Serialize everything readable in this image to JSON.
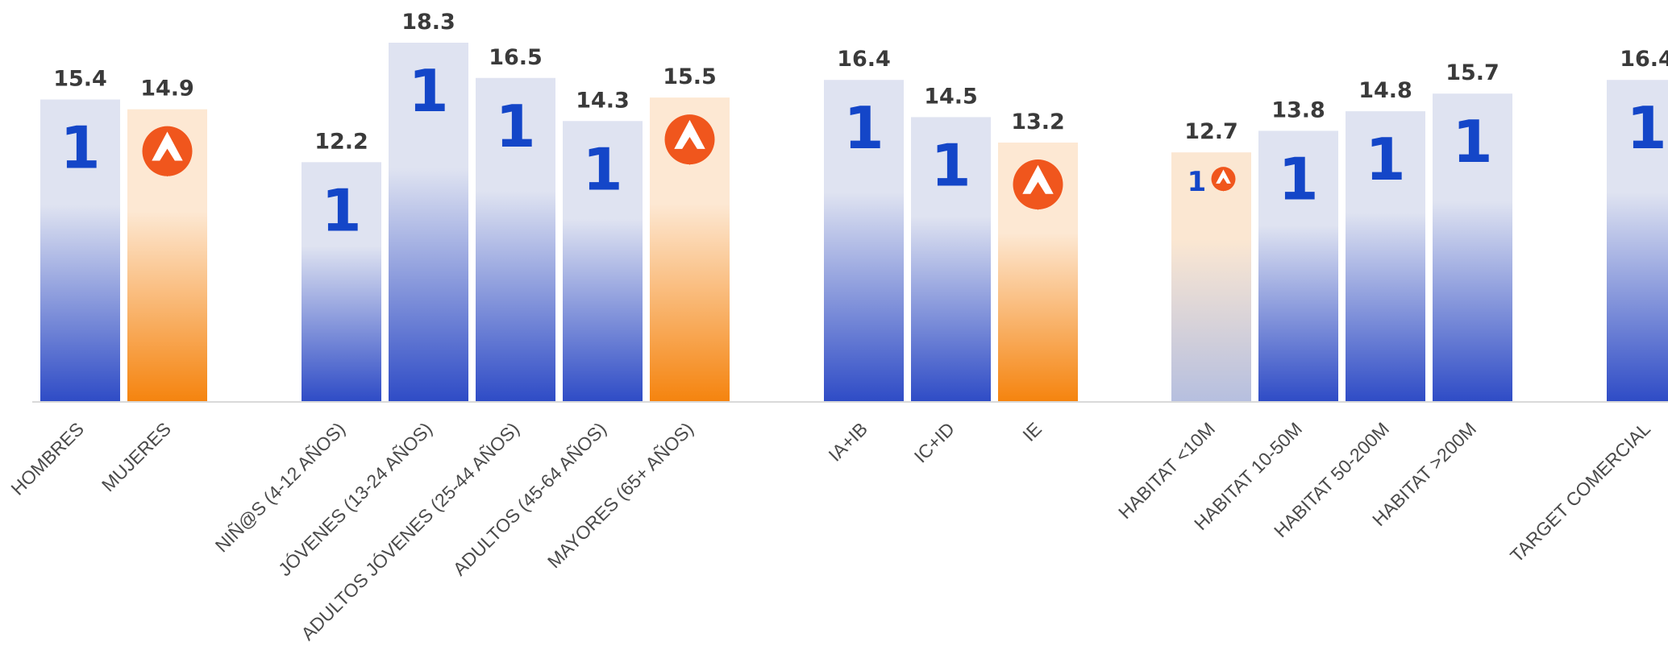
{
  "chart_data": {
    "type": "bar",
    "title": "",
    "xlabel": "",
    "ylabel": "",
    "ylim": [
      0,
      19.5
    ],
    "grid": false,
    "legend": "none",
    "categories": [
      "HOMBRES",
      "MUJERES",
      "NIÑ@S (4-12 AÑOS)",
      "JÓVENES (13-24 AÑOS)",
      "ADULTOS JÓVENES (25-44 AÑOS)",
      "ADULTOS (45-64 AÑOS)",
      "MAYORES (65+ AÑOS)",
      "IA+IB",
      "IC+ID",
      "IE",
      "HABITAT <10M",
      "HABITAT 10-50M",
      "HABITAT 50-200M",
      "HABITAT >200M",
      "TARGET COMERCIAL"
    ],
    "values": [
      15.4,
      14.9,
      12.2,
      18.3,
      16.5,
      14.3,
      15.5,
      16.4,
      14.5,
      13.2,
      12.7,
      13.8,
      14.8,
      15.7,
      16.4
    ],
    "value_labels": [
      "15.4",
      "14.9",
      "12.2",
      "18.3",
      "16.5",
      "14.3",
      "15.5",
      "16.4",
      "14.5",
      "13.2",
      "12.7",
      "13.8",
      "14.8",
      "15.7",
      "16.4"
    ],
    "leader_marks": [
      "la1",
      "antena3",
      "la1",
      "la1",
      "la1",
      "la1",
      "antena3",
      "la1",
      "la1",
      "antena3",
      "tie",
      "la1",
      "la1",
      "la1",
      "la1"
    ],
    "groups": [
      [
        0,
        1
      ],
      [
        2,
        3,
        4,
        5,
        6
      ],
      [
        7,
        8,
        9
      ],
      [
        10,
        11,
        12,
        13
      ],
      [
        14
      ]
    ],
    "mark_text": {
      "la1": "1"
    },
    "colors": {
      "la1_top": "#dfe3f1",
      "la1_bottom": "#2f4cc6",
      "antena3_top": "#fde8d3",
      "antena3_bottom": "#f5840f",
      "tie_top": "#fbe7d2",
      "tie_bottom": "#b6bfdf",
      "la1_logo": "#1446c8",
      "antena3_logo": "#f0561d",
      "axis": "#d9d9d9",
      "value_text": "#3a3a3a",
      "category_text": "#4a4a4a"
    }
  }
}
